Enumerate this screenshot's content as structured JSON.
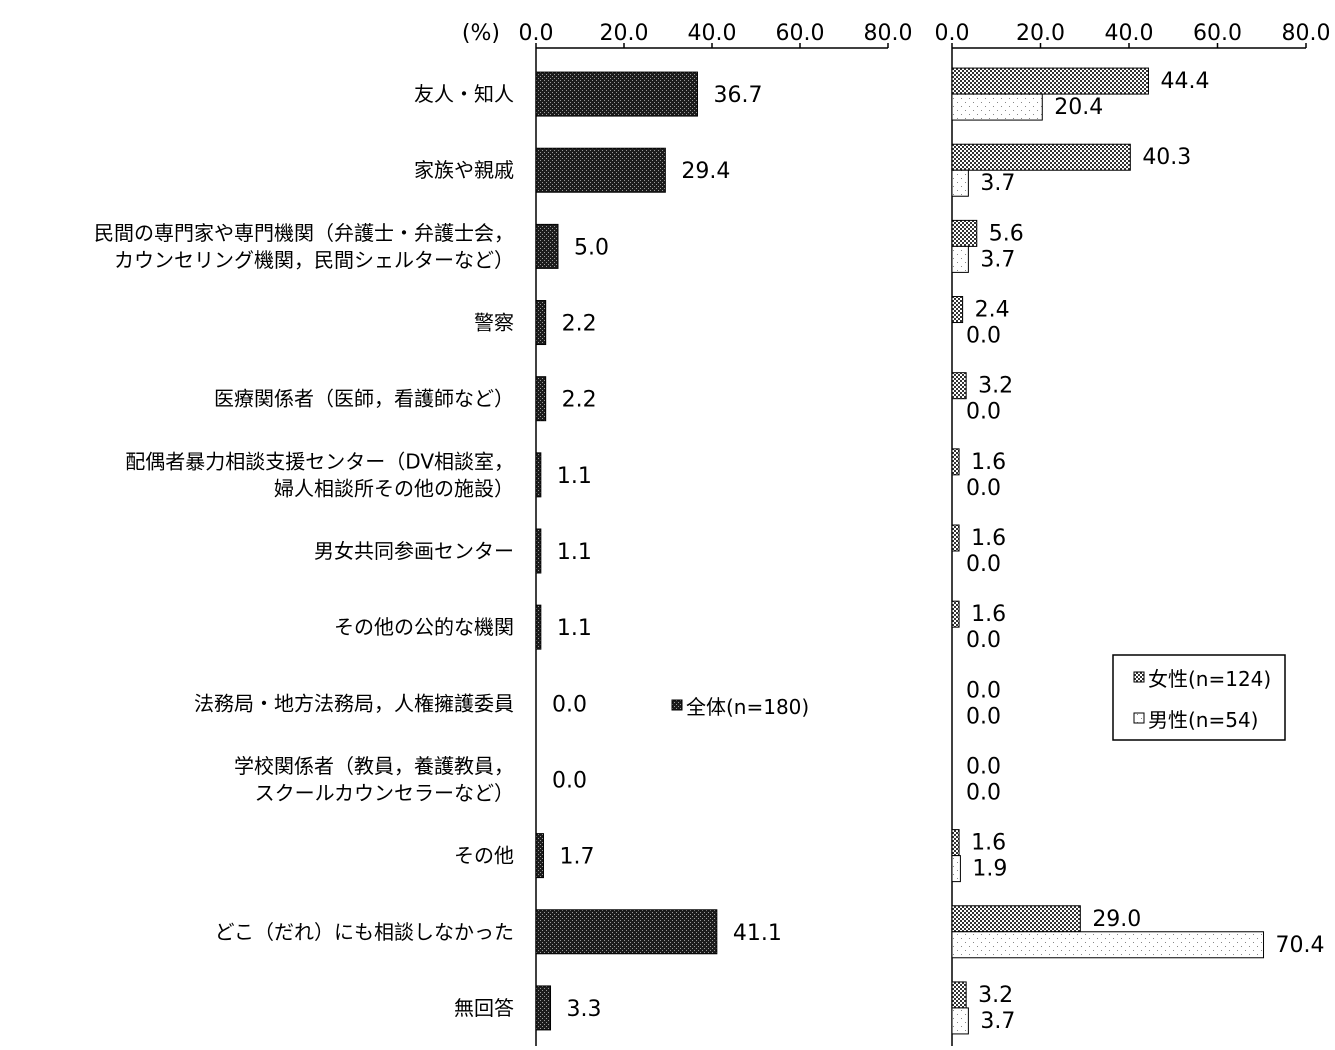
{
  "chart_data": [
    {
      "type": "bar",
      "orientation": "horizontal",
      "unit_label": "(%)",
      "xlim": [
        0,
        80
      ],
      "ticks": [
        "0.0",
        "20.0",
        "40.0",
        "60.0",
        "80.0"
      ],
      "categories": [
        "友人・知人",
        "家族や親戚",
        "民間の専門家や専門機関（弁護士・弁護士会，\nカウンセリング機関，民間シェルターなど）",
        "警察",
        "医療関係者（医師，看護師など）",
        "配偶者暴力相談支援センター（DV相談室，\n婦人相談所その他の施設）",
        "男女共同参画センター",
        "その他の公的な機関",
        "法務局・地方法務局，人権擁護委員",
        "学校関係者（教員，養護教員，\nスクールカウンセラーなど）",
        "その他",
        "どこ（だれ）にも相談しなかった",
        "無回答"
      ],
      "series": [
        {
          "name": "全体(n=180)",
          "values": [
            36.7,
            29.4,
            5.0,
            2.2,
            2.2,
            1.1,
            1.1,
            1.1,
            0.0,
            0.0,
            1.7,
            41.1,
            3.3
          ],
          "labels": [
            "36.7",
            "29.4",
            "5.0",
            "2.2",
            "2.2",
            "1.1",
            "1.1",
            "1.1",
            "0.0",
            "0.0",
            "1.7",
            "41.1",
            "3.3"
          ],
          "pattern": "dense-dark"
        }
      ]
    },
    {
      "type": "bar",
      "orientation": "horizontal",
      "xlim": [
        0,
        80
      ],
      "ticks": [
        "0.0",
        "20.0",
        "40.0",
        "60.0",
        "80.0"
      ],
      "series": [
        {
          "name": "女性(n=124)",
          "values": [
            44.4,
            40.3,
            5.6,
            2.4,
            3.2,
            1.6,
            1.6,
            1.6,
            0.0,
            0.0,
            1.6,
            29.0,
            3.2
          ],
          "labels": [
            "44.4",
            "40.3",
            "5.6",
            "2.4",
            "3.2",
            "1.6",
            "1.6",
            "1.6",
            "0.0",
            "0.0",
            "1.6",
            "29.0",
            "3.2"
          ],
          "pattern": "checker"
        },
        {
          "name": "男性(n=54)",
          "values": [
            20.4,
            3.7,
            3.7,
            0.0,
            0.0,
            0.0,
            0.0,
            0.0,
            0.0,
            0.0,
            1.9,
            70.4,
            3.7
          ],
          "labels": [
            "20.4",
            "3.7",
            "3.7",
            "0.0",
            "0.0",
            "0.0",
            "0.0",
            "0.0",
            "0.0",
            "0.0",
            "1.9",
            "70.4",
            "3.7"
          ],
          "pattern": "light-dots"
        }
      ],
      "legend_position": "right-middle"
    }
  ]
}
